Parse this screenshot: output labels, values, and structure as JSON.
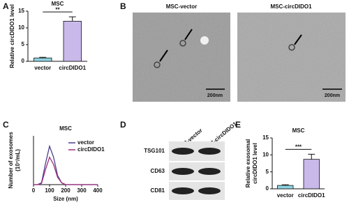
{
  "chart_data": [
    {
      "type": "bar",
      "panel": "A",
      "title": "MSC",
      "y_label": [
        "Relative circDIDO1 level"
      ],
      "categories": [
        "vector",
        "circDIDO1"
      ],
      "values": [
        1,
        12
      ],
      "errors": [
        0.2,
        1.3
      ],
      "colors": [
        "#8fd3e0",
        "#c9b9ea"
      ],
      "significance": "**",
      "ylim": [
        0,
        15
      ],
      "yticks": [
        0,
        5,
        10,
        15
      ]
    },
    {
      "type": "line",
      "panel": "C",
      "title": "MSC",
      "y_label": [
        "Number of exosomes",
        "(10⁷/mL)"
      ],
      "x_label": "Size (nm)",
      "x": [
        0,
        25,
        50,
        75,
        100,
        125,
        150,
        175,
        200,
        250,
        300,
        350,
        400
      ],
      "series": [
        {
          "name": "vector",
          "color": "#4a3d8f",
          "values": [
            0,
            0,
            0.3,
            3.5,
            6.3,
            4.5,
            1.5,
            0.3,
            0,
            0,
            0,
            0,
            0
          ]
        },
        {
          "name": "circDIDO1",
          "color": "#9c2f7a",
          "values": [
            0,
            0,
            0.2,
            2.5,
            4.5,
            3.3,
            1.2,
            0.3,
            0,
            0,
            0,
            0,
            0
          ]
        }
      ],
      "xlim": [
        0,
        400
      ],
      "xticks": [
        0,
        100,
        200,
        300,
        400
      ],
      "ylim": [
        0,
        8
      ]
    },
    {
      "type": "bar",
      "panel": "E",
      "title": "MSC",
      "y_label": [
        "Relative exosomal",
        "circDIDO1 level"
      ],
      "categories": [
        "vector",
        "circDIDO1"
      ],
      "values": [
        1,
        8.7
      ],
      "errors": [
        0.2,
        1.5
      ],
      "colors": [
        "#8fd3e0",
        "#c9b9ea"
      ],
      "significance": "***",
      "ylim": [
        0,
        15
      ],
      "yticks": [
        0,
        5,
        10,
        15
      ]
    }
  ],
  "micrographs": {
    "panel": "B",
    "images": [
      {
        "label": "MSC-vector",
        "scale": "200nm"
      },
      {
        "label": "MSC-circDIDO1",
        "scale": "200nm"
      }
    ]
  },
  "blot": {
    "panel": "D",
    "lanes": [
      "MSC-vector",
      "MSC-circDIDO1"
    ],
    "proteins": [
      "TSG101",
      "CD63",
      "CD81"
    ]
  }
}
